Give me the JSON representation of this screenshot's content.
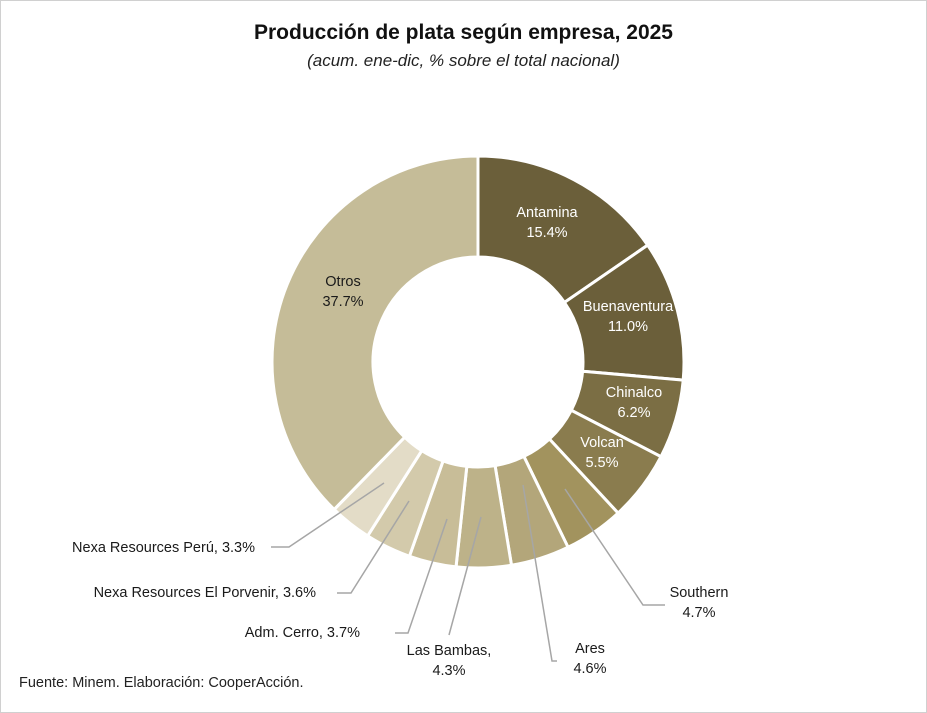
{
  "chart_data": {
    "type": "pie",
    "variant": "donut",
    "title": "Producción  de plata según empresa, 2025",
    "subtitle": "(acum. ene-dic, % sobre el total nacional)",
    "unit": "%",
    "slices": [
      {
        "name": "Antamina",
        "value": 15.4,
        "label": "15.4%",
        "color": "#6b5f3a"
      },
      {
        "name": "Buenaventura",
        "value": 11.0,
        "label": "11.0%",
        "color": "#6b5f3a"
      },
      {
        "name": "Chinalco",
        "value": 6.2,
        "label": "6.2%",
        "color": "#7b6e44"
      },
      {
        "name": "Volcan",
        "value": 5.5,
        "label": "5.5%",
        "color": "#8a7c4e"
      },
      {
        "name": "Southern",
        "value": 4.7,
        "label": "4.7%",
        "color": "#a2935e"
      },
      {
        "name": "Ares",
        "value": 4.6,
        "label": "4.6%",
        "color": "#b3a67a"
      },
      {
        "name": "Las Bambas,",
        "value": 4.3,
        "label": "4.3%",
        "color": "#bdb289"
      },
      {
        "name": "Adm. Cerro,",
        "value": 3.7,
        "label": "3.7%",
        "color": "#c8bd98"
      },
      {
        "name": "Nexa Resources El Porvenir,",
        "value": 3.6,
        "label": "3.6%",
        "color": "#d3caab"
      },
      {
        "name": "Nexa Resources Perú,",
        "value": 3.3,
        "label": "3.3%",
        "color": "#e3dcc7"
      },
      {
        "name": "Otros",
        "value": 37.7,
        "label": "37.7%",
        "color": "#c5bc98"
      }
    ]
  },
  "footer": {
    "source": "Fuente: Minem. Elaboración: CooperAcción."
  }
}
